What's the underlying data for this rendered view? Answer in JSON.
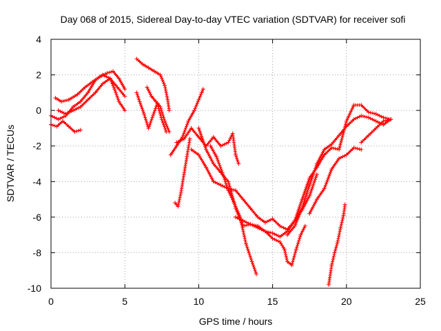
{
  "chart_data": {
    "type": "scatter",
    "title": "Day 068 of 2015, Sidereal Day-to-day VTEC variation (SDTVAR) for receiver sofi",
    "xlabel": "GPS time / hours",
    "ylabel": "SDTVAR / TECUs",
    "xlim": [
      0,
      25
    ],
    "ylim": [
      -10,
      4
    ],
    "xticks": [
      "0",
      "5",
      "10",
      "15",
      "20",
      "25"
    ],
    "yticks": [
      "4",
      "2",
      "0",
      "-2",
      "-4",
      "-6",
      "-8",
      "-10"
    ],
    "xtick_values": [
      0,
      5,
      10,
      15,
      20,
      25
    ],
    "ytick_values": [
      4,
      2,
      0,
      -2,
      -4,
      -6,
      -8,
      -10
    ],
    "grid": true,
    "marker": "+",
    "color": "#ff0000",
    "series": [
      {
        "x": [
          0.0,
          0.5,
          1.0,
          1.5,
          2.0,
          2.5,
          3.0,
          3.5,
          4.0,
          4.3,
          4.6,
          5.0
        ],
        "y": [
          -0.3,
          -0.5,
          -0.3,
          0.2,
          0.5,
          1.0,
          1.7,
          2.0,
          1.8,
          1.2,
          0.5,
          0.0
        ]
      },
      {
        "x": [
          0.0,
          0.4,
          0.8,
          1.2,
          1.6,
          2.0
        ],
        "y": [
          -0.8,
          -0.9,
          -0.6,
          -0.9,
          -1.2,
          -1.1
        ]
      },
      {
        "x": [
          0.3,
          0.7,
          1.2,
          1.8,
          2.3,
          2.8,
          3.3,
          3.8,
          4.2,
          4.6,
          5.0
        ],
        "y": [
          0.7,
          0.5,
          0.6,
          0.9,
          1.3,
          1.6,
          1.9,
          2.1,
          2.2,
          1.8,
          1.2
        ]
      },
      {
        "x": [
          0.5,
          1.0,
          1.5,
          2.0,
          2.5,
          3.0,
          3.5,
          4.0,
          4.5,
          5.0
        ],
        "y": [
          0.0,
          -0.2,
          0.0,
          0.2,
          0.6,
          1.0,
          1.5,
          1.8,
          1.3,
          0.8
        ]
      },
      {
        "x": [
          5.8,
          6.2,
          6.6,
          7.0,
          7.4,
          7.7,
          7.9,
          8.0
        ],
        "y": [
          2.9,
          2.6,
          2.4,
          2.2,
          2.0,
          1.4,
          0.6,
          0.0
        ]
      },
      {
        "x": [
          5.8,
          6.0,
          6.3,
          6.6,
          6.9,
          7.2,
          7.5,
          7.8
        ],
        "y": [
          1.0,
          0.5,
          -0.2,
          -1.0,
          -0.3,
          0.4,
          -0.5,
          -1.2
        ]
      },
      {
        "x": [
          6.5,
          6.8,
          7.1,
          7.4,
          7.7,
          8.0
        ],
        "y": [
          1.3,
          0.8,
          0.5,
          0.2,
          -0.6,
          -1.2
        ]
      },
      {
        "x": [
          8.1,
          8.5,
          8.9,
          9.3,
          9.7,
          10.0,
          10.2,
          10.3
        ],
        "y": [
          -2.5,
          -2.0,
          -1.5,
          -0.6,
          0.0,
          0.6,
          1.0,
          1.2
        ]
      },
      {
        "x": [
          8.4,
          8.6,
          8.8,
          9.0,
          9.2,
          9.4
        ],
        "y": [
          -5.2,
          -5.4,
          -4.6,
          -3.6,
          -2.6,
          -1.6
        ]
      },
      {
        "x": [
          8.5,
          9.0,
          9.5,
          10.0,
          10.5,
          11.0,
          11.5,
          12.0,
          12.3,
          12.5,
          12.7
        ],
        "y": [
          -1.8,
          -1.6,
          -1.0,
          -1.5,
          -2.0,
          -1.5,
          -2.0,
          -1.8,
          -1.3,
          -2.5,
          -3.0
        ]
      },
      {
        "x": [
          9.5,
          10.0,
          10.5,
          11.0,
          11.5,
          12.0,
          12.5,
          13.0,
          13.5,
          14.0,
          14.5,
          15.0,
          15.5,
          16.0,
          16.5,
          17.0
        ],
        "y": [
          -2.2,
          -2.5,
          -3.2,
          -4.0,
          -4.2,
          -4.4,
          -4.5,
          -5.0,
          -5.5,
          -6.0,
          -6.3,
          -6.1,
          -6.5,
          -6.7,
          -6.2,
          -5.5
        ]
      },
      {
        "x": [
          10.0,
          10.5,
          11.0,
          11.5,
          12.0,
          12.5,
          13.0,
          13.5,
          14.0,
          14.5,
          15.0,
          15.5,
          16.0,
          16.5,
          17.0,
          17.5,
          18.0
        ],
        "y": [
          -1.0,
          -2.2,
          -3.0,
          -3.5,
          -4.0,
          -5.5,
          -6.5,
          -6.4,
          -6.6,
          -6.8,
          -6.9,
          -7.1,
          -6.8,
          -6.2,
          -5.6,
          -4.8,
          -3.6
        ]
      },
      {
        "x": [
          10.8,
          11.2,
          11.6,
          12.0,
          12.4,
          12.8,
          13.2,
          13.6,
          13.9
        ],
        "y": [
          -2.0,
          -2.6,
          -3.5,
          -4.5,
          -5.2,
          -6.0,
          -7.5,
          -8.5,
          -9.2
        ]
      },
      {
        "x": [
          12.5,
          13.0,
          13.5,
          14.0,
          14.5,
          15.0,
          15.5,
          15.8,
          16.0,
          16.3,
          16.6,
          16.9,
          17.2
        ],
        "y": [
          -6.0,
          -6.2,
          -6.4,
          -6.5,
          -6.8,
          -7.2,
          -7.4,
          -7.8,
          -8.5,
          -8.7,
          -7.8,
          -7.0,
          -6.5
        ]
      },
      {
        "x": [
          16.0,
          16.5,
          17.0,
          17.5,
          18.0,
          18.5,
          19.0,
          19.5,
          20.0,
          20.5,
          21.0,
          21.5,
          22.0,
          22.5,
          23.0
        ],
        "y": [
          -7.0,
          -6.5,
          -5.5,
          -4.2,
          -3.0,
          -2.2,
          -1.9,
          -1.4,
          -0.9,
          -0.5,
          -0.3,
          -0.4,
          -0.6,
          -0.8,
          -0.5
        ]
      },
      {
        "x": [
          16.5,
          17.0,
          17.5,
          18.0,
          18.5,
          19.0,
          19.5,
          20.0,
          20.5,
          21.0,
          21.5,
          22.0,
          22.5,
          23.0
        ],
        "y": [
          -6.2,
          -5.0,
          -3.8,
          -3.2,
          -2.5,
          -2.1,
          -2.2,
          -0.6,
          0.3,
          0.3,
          -0.1,
          -0.2,
          -0.4,
          -0.5
        ]
      },
      {
        "x": [
          17.5,
          18.0,
          18.5,
          19.0,
          19.5,
          20.0,
          20.5,
          21.0
        ],
        "y": [
          -5.8,
          -5.0,
          -4.4,
          -3.3,
          -2.7,
          -2.5,
          -2.1,
          -2.2
        ]
      },
      {
        "x": [
          18.8,
          19.0,
          19.2,
          19.4,
          19.6,
          19.8,
          19.9
        ],
        "y": [
          -9.8,
          -8.7,
          -8.0,
          -7.4,
          -6.6,
          -5.9,
          -5.3
        ]
      },
      {
        "x": [
          21.0,
          21.5,
          22.0,
          22.5,
          23.0
        ],
        "y": [
          -1.8,
          -1.4,
          -1.0,
          -0.6,
          -0.5
        ]
      }
    ]
  }
}
